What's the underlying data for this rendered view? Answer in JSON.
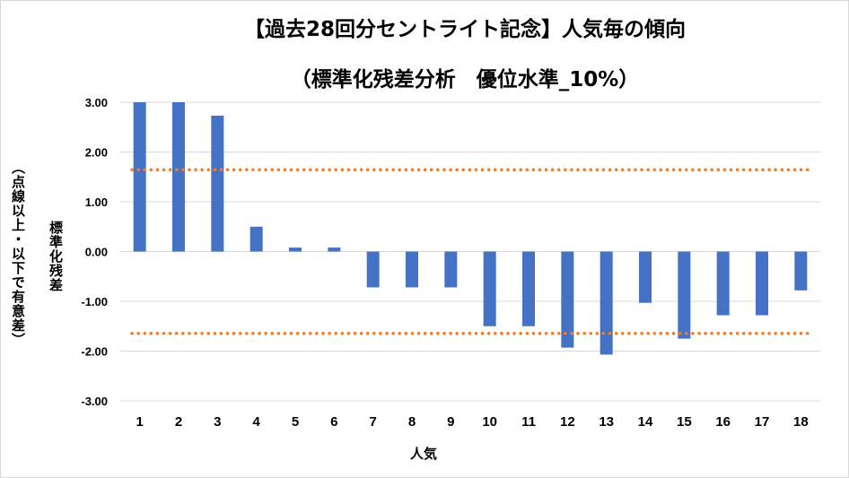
{
  "chart_data": {
    "type": "bar",
    "title": "【過去28回分セントライト記念】人気毎の傾向",
    "subtitle": "（標準化残差分析　優位水準_10%）",
    "xlabel": "人気",
    "ylabel_lines": [
      "標準化残差",
      "（点線以上・以下で有意差）"
    ],
    "categories": [
      "1",
      "2",
      "3",
      "4",
      "5",
      "6",
      "7",
      "8",
      "9",
      "10",
      "11",
      "12",
      "13",
      "14",
      "15",
      "16",
      "17",
      "18"
    ],
    "values": [
      3.0,
      3.0,
      2.73,
      0.5,
      0.08,
      0.08,
      -0.72,
      -0.72,
      -0.72,
      -1.5,
      -1.5,
      -1.93,
      -2.07,
      -1.03,
      -1.75,
      -1.28,
      -1.28,
      -0.78
    ],
    "ylim": [
      -3.0,
      3.0
    ],
    "yticks": [
      "3.00",
      "2.00",
      "1.00",
      "0.00",
      "-1.00",
      "-2.00",
      "-3.00"
    ],
    "ytick_values": [
      3,
      2,
      1,
      0,
      -1,
      -2,
      -3
    ],
    "thresholds": [
      1.645,
      -1.645
    ],
    "grid": true,
    "legend": "none",
    "colors": {
      "bar": "#4472c4",
      "threshold": "#ed7d31",
      "grid": "#d9d9d9"
    }
  }
}
